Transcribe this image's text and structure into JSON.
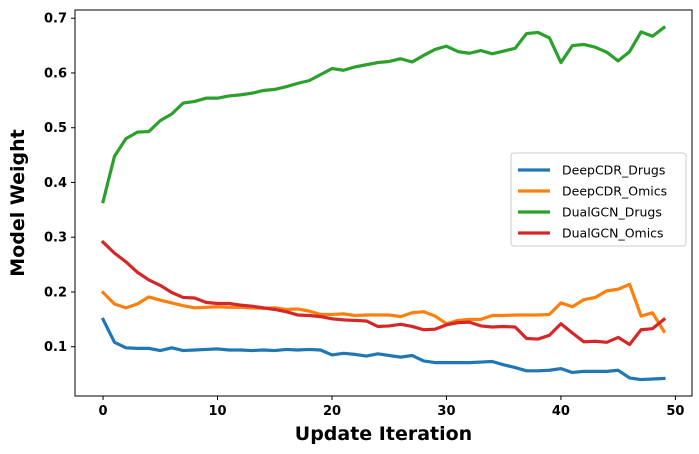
{
  "chart_data": {
    "type": "line",
    "title": "",
    "xlabel": "Update Iteration",
    "ylabel": "Model Weight",
    "xlim": [
      -2.45,
      51.45
    ],
    "ylim": [
      0.01,
      0.715
    ],
    "xticks": [
      0,
      10,
      20,
      30,
      40,
      50
    ],
    "yticks": [
      0.1,
      0.2,
      0.3,
      0.4,
      0.5,
      0.6,
      0.7
    ],
    "xtick_labels": [
      "0",
      "10",
      "20",
      "30",
      "40",
      "50"
    ],
    "ytick_labels": [
      "0.1",
      "0.2",
      "0.3",
      "0.4",
      "0.5",
      "0.6",
      "0.7"
    ],
    "grid": false,
    "legend_position": "center-right",
    "x": [
      0,
      1,
      2,
      3,
      4,
      5,
      6,
      7,
      8,
      9,
      10,
      11,
      12,
      13,
      14,
      15,
      16,
      17,
      18,
      19,
      20,
      21,
      22,
      23,
      24,
      25,
      26,
      27,
      28,
      29,
      30,
      31,
      32,
      33,
      34,
      35,
      36,
      37,
      38,
      39,
      40,
      41,
      42,
      43,
      44,
      45,
      46,
      47,
      48,
      49
    ],
    "series": [
      {
        "name": "DeepCDR_Drugs",
        "color": "#1f77b4",
        "values": [
          0.15,
          0.108,
          0.098,
          0.097,
          0.097,
          0.093,
          0.098,
          0.093,
          0.094,
          0.095,
          0.096,
          0.094,
          0.094,
          0.093,
          0.094,
          0.093,
          0.095,
          0.094,
          0.095,
          0.094,
          0.085,
          0.088,
          0.086,
          0.083,
          0.087,
          0.084,
          0.081,
          0.084,
          0.074,
          0.071,
          0.071,
          0.071,
          0.071,
          0.072,
          0.073,
          0.067,
          0.062,
          0.056,
          0.056,
          0.057,
          0.06,
          0.053,
          0.055,
          0.055,
          0.055,
          0.057,
          0.043,
          0.04,
          0.041,
          0.042
        ]
      },
      {
        "name": "DeepCDR_Omics",
        "color": "#ff7f0e",
        "values": [
          0.199,
          0.178,
          0.171,
          0.178,
          0.191,
          0.185,
          0.18,
          0.175,
          0.171,
          0.172,
          0.173,
          0.172,
          0.172,
          0.171,
          0.17,
          0.171,
          0.168,
          0.169,
          0.165,
          0.159,
          0.159,
          0.16,
          0.157,
          0.158,
          0.158,
          0.158,
          0.155,
          0.162,
          0.164,
          0.156,
          0.142,
          0.148,
          0.15,
          0.15,
          0.157,
          0.157,
          0.158,
          0.158,
          0.158,
          0.159,
          0.18,
          0.173,
          0.186,
          0.19,
          0.202,
          0.205,
          0.214,
          0.156,
          0.162,
          0.128
        ]
      },
      {
        "name": "DualGCN_Drugs",
        "color": "#2ca02c",
        "values": [
          0.365,
          0.448,
          0.48,
          0.492,
          0.493,
          0.513,
          0.525,
          0.545,
          0.548,
          0.554,
          0.554,
          0.558,
          0.56,
          0.563,
          0.568,
          0.57,
          0.575,
          0.581,
          0.586,
          0.597,
          0.608,
          0.605,
          0.611,
          0.615,
          0.619,
          0.621,
          0.626,
          0.62,
          0.632,
          0.643,
          0.649,
          0.639,
          0.636,
          0.641,
          0.635,
          0.64,
          0.645,
          0.672,
          0.674,
          0.664,
          0.619,
          0.65,
          0.652,
          0.647,
          0.638,
          0.622,
          0.639,
          0.675,
          0.667,
          0.683
        ]
      },
      {
        "name": "DualGCN_Omics",
        "color": "#d62728",
        "values": [
          0.291,
          0.271,
          0.255,
          0.236,
          0.222,
          0.212,
          0.199,
          0.19,
          0.189,
          0.181,
          0.179,
          0.179,
          0.176,
          0.174,
          0.171,
          0.168,
          0.164,
          0.158,
          0.157,
          0.155,
          0.151,
          0.149,
          0.148,
          0.147,
          0.137,
          0.138,
          0.141,
          0.137,
          0.131,
          0.132,
          0.14,
          0.144,
          0.145,
          0.138,
          0.136,
          0.137,
          0.136,
          0.115,
          0.114,
          0.121,
          0.142,
          0.125,
          0.109,
          0.11,
          0.108,
          0.117,
          0.104,
          0.131,
          0.133,
          0.15
        ]
      }
    ]
  }
}
